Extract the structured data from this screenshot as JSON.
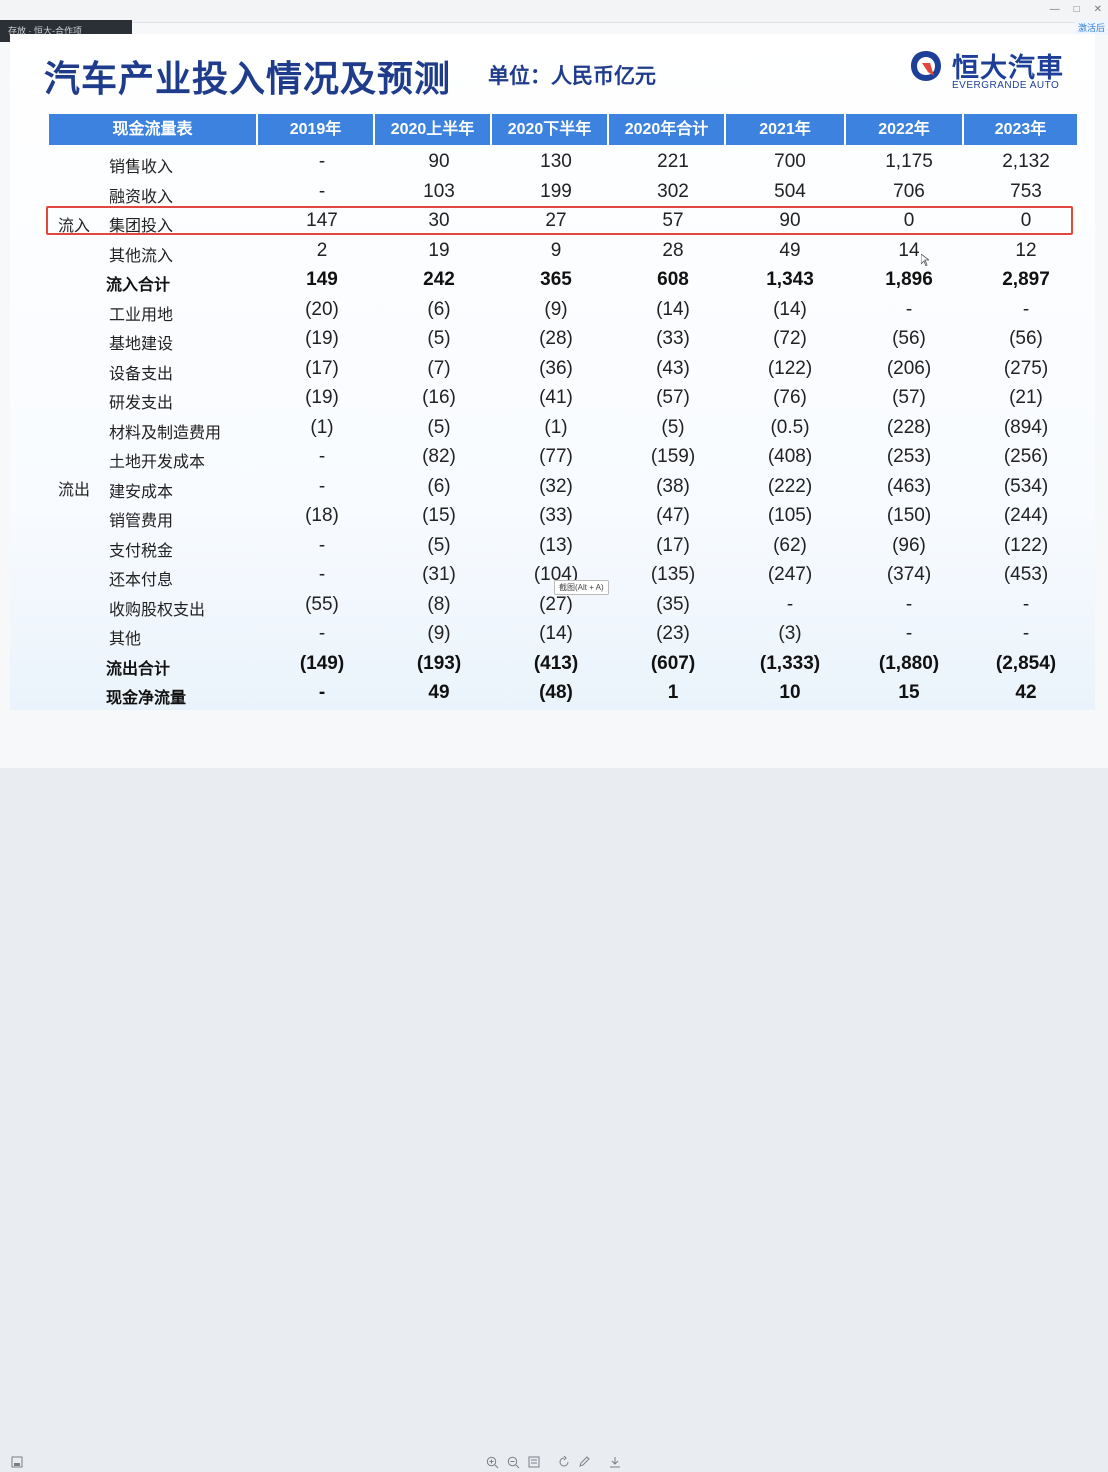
{
  "window": {
    "tab_label": "存放 · 恒大-合作项",
    "corner_badge": "激活后"
  },
  "slide": {
    "title": "汽车产业投入情况及预测",
    "unit": "单位：人民币亿元",
    "logo_cn": "恒大汽車",
    "logo_en": "EVERGRANDE AUTO",
    "accent": "#3d82df",
    "highlight_color": "#e2473e"
  },
  "table": {
    "header": [
      "现金流量表",
      "2019年",
      "2020上半年",
      "2020下半年",
      "2020年合计",
      "2021年",
      "2022年",
      "2023年"
    ],
    "group_inflow": "流入",
    "group_outflow": "流出",
    "rows": [
      {
        "label": "销售收入",
        "values": [
          "-",
          "90",
          "130",
          "221",
          "700",
          "1,175",
          "2,132"
        ]
      },
      {
        "label": "融资收入",
        "values": [
          "-",
          "103",
          "199",
          "302",
          "504",
          "706",
          "753"
        ]
      },
      {
        "label": "集团投入",
        "values": [
          "147",
          "30",
          "27",
          "57",
          "90",
          "0",
          "0"
        ],
        "highlight": true
      },
      {
        "label": "其他流入",
        "values": [
          "2",
          "19",
          "9",
          "28",
          "49",
          "14",
          "12"
        ]
      },
      {
        "label": "流入合计",
        "values": [
          "149",
          "242",
          "365",
          "608",
          "1,343",
          "1,896",
          "2,897"
        ],
        "bold": true
      },
      {
        "label": "工业用地",
        "values": [
          "(20)",
          "(6)",
          "(9)",
          "(14)",
          "(14)",
          "-",
          "-"
        ]
      },
      {
        "label": "基地建设",
        "values": [
          "(19)",
          "(5)",
          "(28)",
          "(33)",
          "(72)",
          "(56)",
          "(56)"
        ]
      },
      {
        "label": "设备支出",
        "values": [
          "(17)",
          "(7)",
          "(36)",
          "(43)",
          "(122)",
          "(206)",
          "(275)"
        ]
      },
      {
        "label": "研发支出",
        "values": [
          "(19)",
          "(16)",
          "(41)",
          "(57)",
          "(76)",
          "(57)",
          "(21)"
        ]
      },
      {
        "label": "材料及制造费用",
        "values": [
          "(1)",
          "(5)",
          "(1)",
          "(5)",
          "(0.5)",
          "(228)",
          "(894)"
        ]
      },
      {
        "label": "土地开发成本",
        "values": [
          "-",
          "(82)",
          "(77)",
          "(159)",
          "(408)",
          "(253)",
          "(256)"
        ]
      },
      {
        "label": "建安成本",
        "values": [
          "-",
          "(6)",
          "(32)",
          "(38)",
          "(222)",
          "(463)",
          "(534)"
        ]
      },
      {
        "label": "销管费用",
        "values": [
          "(18)",
          "(15)",
          "(33)",
          "(47)",
          "(105)",
          "(150)",
          "(244)"
        ]
      },
      {
        "label": "支付税金",
        "values": [
          "-",
          "(5)",
          "(13)",
          "(17)",
          "(62)",
          "(96)",
          "(122)"
        ]
      },
      {
        "label": "还本付息",
        "values": [
          "-",
          "(31)",
          "(104)",
          "(135)",
          "(247)",
          "(374)",
          "(453)"
        ]
      },
      {
        "label": "收购股权支出",
        "values": [
          "(55)",
          "(8)",
          "(27)",
          "(35)",
          "-",
          "-",
          "-"
        ]
      },
      {
        "label": "其他",
        "values": [
          "-",
          "(9)",
          "(14)",
          "(23)",
          "(3)",
          "-",
          "-"
        ]
      },
      {
        "label": "流出合计",
        "values": [
          "(149)",
          "(193)",
          "(413)",
          "(607)",
          "(1,333)",
          "(1,880)",
          "(2,854)"
        ],
        "bold": true
      },
      {
        "label": "现金净流量",
        "values": [
          "-",
          "49",
          "(48)",
          "1",
          "10",
          "15",
          "42"
        ],
        "bold": true
      }
    ]
  },
  "overlay": {
    "tooltip": "截图(Alt + A)"
  },
  "toolbar": {
    "icons": [
      "download-icon",
      "zoom-in-icon",
      "zoom-out-icon",
      "fit-page-icon",
      "rotate-icon",
      "pen-icon",
      "export-icon"
    ]
  }
}
